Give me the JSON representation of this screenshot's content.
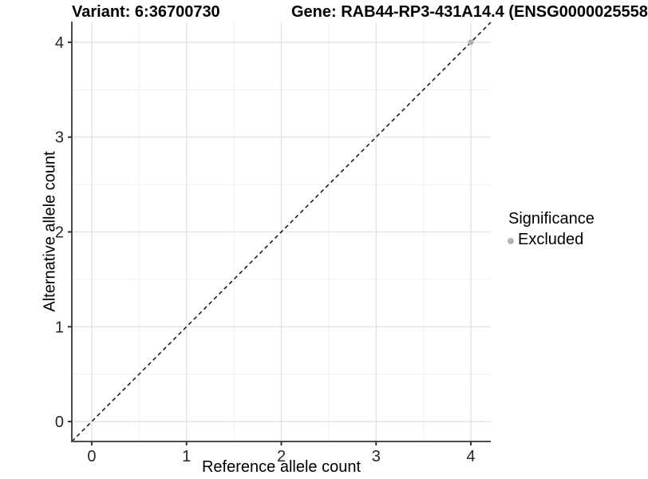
{
  "titles": {
    "variant": "Variant: 6:36700730",
    "gene": "Gene: RAB44-RP3-431A14.4 (ENSG0000025558"
  },
  "chart_data": {
    "type": "scatter",
    "xlabel": "Reference allele count",
    "ylabel": "Alternative allele count",
    "xlim": [
      -0.21,
      4.21
    ],
    "ylim": [
      -0.21,
      4.21
    ],
    "x_ticks": [
      0,
      1,
      2,
      3,
      4
    ],
    "y_ticks": [
      0,
      1,
      2,
      3,
      4
    ],
    "x_minor_ticks": [
      0.5,
      1.5,
      2.5,
      3.5
    ],
    "y_minor_ticks": [
      0.5,
      1.5,
      2.5,
      3.5
    ],
    "grid": true,
    "identity_line": {
      "show": true,
      "style": "dashed",
      "color": "#111111"
    },
    "series": [
      {
        "name": "Excluded",
        "color": "#b3b3b3",
        "points": [
          {
            "x": 4,
            "y": 4
          }
        ]
      }
    ],
    "legend": {
      "position": "right",
      "title": "Significance",
      "items": [
        {
          "label": "Excluded",
          "color": "#b3b3b3"
        }
      ]
    }
  },
  "style": {
    "axis_line_color": "#4d4d4d",
    "tick_color": "#333333",
    "tick_label_color": "#262626",
    "grid_major_color": "#e2e2e2",
    "grid_minor_color": "#f0f0f0",
    "panel_bg": "#ffffff"
  }
}
